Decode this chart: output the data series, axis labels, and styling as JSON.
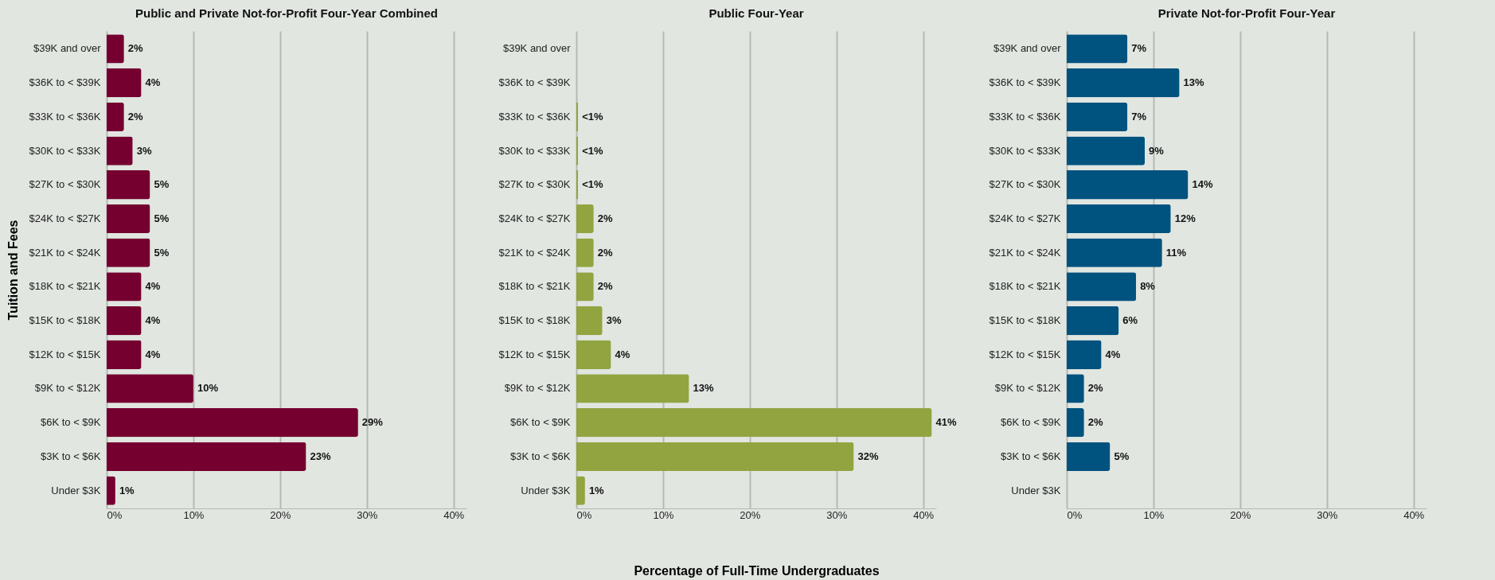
{
  "chart_data": [
    {
      "type": "bar",
      "orientation": "horizontal",
      "title": "Public and Private Not-for-Profit Four-Year Combined",
      "ylabel": "Tuition and Fees",
      "categories": [
        "$39K and over",
        "$36K to < $39K",
        "$33K to < $36K",
        "$30K to < $33K",
        "$27K to < $30K",
        "$24K to < $27K",
        "$21K to < $24K",
        "$18K to < $21K",
        "$15K to < $18K",
        "$12K to < $15K",
        "$9K to < $12K",
        "$6K to < $9K",
        "$3K to < $6K",
        "Under $3K"
      ],
      "values": [
        2,
        4,
        2,
        3,
        5,
        5,
        5,
        4,
        4,
        4,
        10,
        29,
        23,
        1
      ],
      "value_labels": [
        "2%",
        "4%",
        "2%",
        "3%",
        "5%",
        "5%",
        "5%",
        "4%",
        "4%",
        "4%",
        "10%",
        "29%",
        "23%",
        "1%"
      ],
      "color": "#75002f",
      "xlim": [
        0,
        41.5
      ],
      "xticks": [
        {
          "value": 0,
          "label": "0%"
        },
        {
          "value": 10,
          "label": "10%"
        },
        {
          "value": 20,
          "label": "20%"
        },
        {
          "value": 30,
          "label": "30%"
        },
        {
          "value": 40,
          "label": "40%"
        }
      ],
      "grid": "x"
    },
    {
      "type": "bar",
      "orientation": "horizontal",
      "title": "Public Four-Year",
      "xlabel": "Percentage of Full-Time Undergraduates",
      "categories": [
        "$39K and over",
        "$36K to < $39K",
        "$33K to < $36K",
        "$30K to < $33K",
        "$27K to < $30K",
        "$24K to < $27K",
        "$21K to < $24K",
        "$18K to < $21K",
        "$15K to < $18K",
        "$12K to < $15K",
        "$9K to < $12K",
        "$6K to < $9K",
        "$3K to < $6K",
        "Under $3K"
      ],
      "values": [
        null,
        null,
        0.2,
        0.2,
        0.2,
        2,
        2,
        2,
        3,
        4,
        13,
        41,
        32,
        1
      ],
      "value_labels": [
        null,
        null,
        "<1%",
        "<1%",
        "<1%",
        "2%",
        "2%",
        "2%",
        "3%",
        "4%",
        "13%",
        "41%",
        "32%",
        "1%"
      ],
      "color": "#92a440",
      "xlim": [
        0,
        41.5
      ],
      "xticks": [
        {
          "value": 0,
          "label": "0%"
        },
        {
          "value": 10,
          "label": "10%"
        },
        {
          "value": 20,
          "label": "20%"
        },
        {
          "value": 30,
          "label": "30%"
        },
        {
          "value": 40,
          "label": "40%"
        }
      ],
      "grid": "x"
    },
    {
      "type": "bar",
      "orientation": "horizontal",
      "title": "Private Not-for-Profit Four-Year",
      "categories": [
        "$39K and over",
        "$36K to < $39K",
        "$33K to < $36K",
        "$30K to < $33K",
        "$27K to < $30K",
        "$24K to < $27K",
        "$21K to < $24K",
        "$18K to < $21K",
        "$15K to < $18K",
        "$12K to < $15K",
        "$9K to < $12K",
        "$6K to < $9K",
        "$3K to < $6K",
        "Under $3K"
      ],
      "values": [
        7,
        13,
        7,
        9,
        14,
        12,
        11,
        8,
        6,
        4,
        2,
        2,
        5,
        null
      ],
      "value_labels": [
        "7%",
        "13%",
        "7%",
        "9%",
        "14%",
        "12%",
        "11%",
        "8%",
        "6%",
        "4%",
        "2%",
        "2%",
        "5%",
        null
      ],
      "color": "#00527f",
      "xlim": [
        0,
        41.5
      ],
      "xticks": [
        {
          "value": 0,
          "label": "0%"
        },
        {
          "value": 10,
          "label": "10%"
        },
        {
          "value": 20,
          "label": "20%"
        },
        {
          "value": 30,
          "label": "30%"
        },
        {
          "value": 40,
          "label": "40%"
        }
      ],
      "grid": "x"
    }
  ]
}
